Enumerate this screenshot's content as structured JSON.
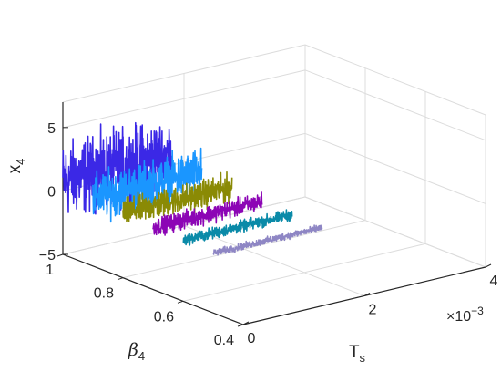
{
  "chart_data": {
    "type": "line",
    "view": "3d",
    "title": "",
    "axes": {
      "x": {
        "label": "T",
        "label_subscript": "s",
        "range": [
          0,
          0.004
        ],
        "ticks": [
          0,
          0.002,
          0.004
        ],
        "tick_labels": [
          "0",
          "2",
          "4"
        ],
        "exponent_label": "×10",
        "exponent_power": "−3"
      },
      "y": {
        "label": "β",
        "label_subscript": "4",
        "range": [
          0.4,
          1.0
        ],
        "ticks": [
          0.4,
          0.6,
          0.8,
          1.0
        ],
        "tick_labels": [
          "0.4",
          "0.6",
          "0.8",
          "1"
        ]
      },
      "z": {
        "label": "x",
        "label_subscript": "4",
        "range": [
          -5,
          7
        ],
        "ticks": [
          -5,
          0,
          5
        ],
        "tick_labels": [
          "−5",
          "0",
          "5"
        ]
      }
    },
    "grid": true,
    "legend": "none",
    "series": [
      {
        "beta": 1.0,
        "t_range": [
          0,
          0.0018
        ],
        "mean": 0.8,
        "amplitude": 4.2,
        "color": "#3b28e6"
      },
      {
        "beta": 0.9,
        "t_range": [
          0,
          0.0018
        ],
        "mean": 0.4,
        "amplitude": 2.6,
        "color": "#1a96ff"
      },
      {
        "beta": 0.8,
        "t_range": [
          0,
          0.0018
        ],
        "mean": 0.1,
        "amplitude": 1.6,
        "color": "#8a8a05"
      },
      {
        "beta": 0.7,
        "t_range": [
          0,
          0.0018
        ],
        "mean": -0.1,
        "amplitude": 1.0,
        "color": "#8c05b5"
      },
      {
        "beta": 0.6,
        "t_range": [
          0,
          0.0018
        ],
        "mean": -0.2,
        "amplitude": 0.65,
        "color": "#0a8aa8"
      },
      {
        "beta": 0.5,
        "t_range": [
          0,
          0.0018
        ],
        "mean": -0.3,
        "amplitude": 0.4,
        "color": "#8e86c4"
      }
    ]
  }
}
